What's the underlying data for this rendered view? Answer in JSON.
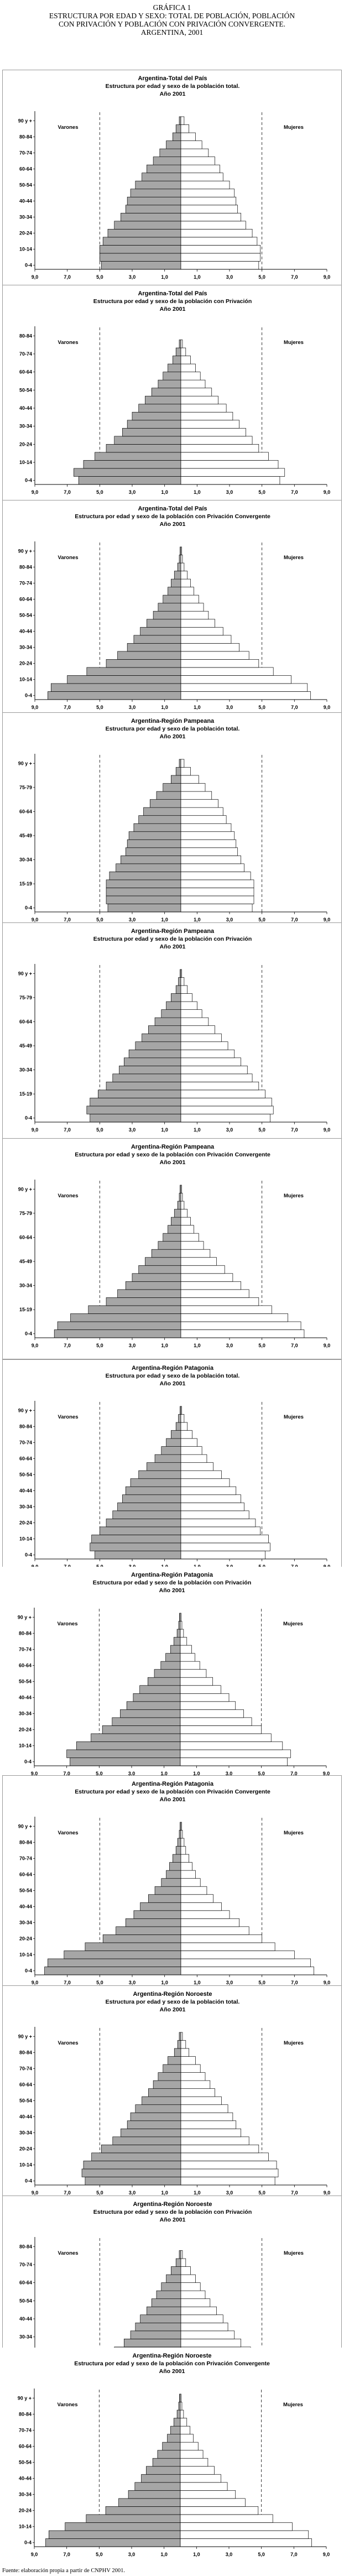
{
  "header": {
    "line1": "GRÁFICA 1",
    "line2": "ESTRUCTURA POR EDAD Y SEXO: TOTAL DE POBLACIÓN, POBLACIÓN",
    "line3": "CON PRIVACIÓN Y POBLACIÓN CON PRIVACIÓN CONVERGENTE.",
    "line4": "ARGENTINA, 2001"
  },
  "source": "Fuente: elaboración propia a partir de CNPHV 2001.",
  "colors": {
    "male": "#a6a6a6",
    "female": "#ffffff",
    "stroke": "#000000"
  },
  "chart_data": [
    {
      "type": "bar",
      "title": "Argentina-Total del País",
      "subtitle": "Estructura por edad y sexo de la población total.",
      "year": "Año 2001",
      "male_label": "Varones",
      "female_label": "Mujeres",
      "age_ticks": [
        "90 y +",
        "80-84",
        "70-74",
        "60-64",
        "50-54",
        "40-44",
        "30-34",
        "20-24",
        "10-14",
        "0-4"
      ],
      "x_ticks": [
        "9,0",
        "7,0",
        "5,0",
        "3,0",
        "1,0",
        "1,0",
        "3,0",
        "5,0",
        "7,0",
        "9,0"
      ],
      "xmax": 9,
      "males": [
        4.9,
        5.0,
        5.0,
        4.8,
        4.5,
        4.1,
        3.7,
        3.4,
        3.3,
        3.1,
        2.8,
        2.4,
        2.1,
        1.7,
        1.3,
        0.9,
        0.5,
        0.3,
        0.1
      ],
      "females": [
        4.8,
        4.9,
        4.9,
        4.7,
        4.4,
        4.0,
        3.7,
        3.5,
        3.4,
        3.3,
        3.0,
        2.6,
        2.4,
        2.1,
        1.7,
        1.3,
        0.9,
        0.5,
        0.2
      ]
    },
    {
      "type": "bar",
      "title": "Argentina-Total del País",
      "subtitle": "Estructura por edad y sexo de la población con Privación",
      "year": "Año 2001",
      "male_label": "Varones",
      "female_label": "Mujeres",
      "age_ticks": [
        "80-84",
        "70-74",
        "60-64",
        "50-54",
        "40-44",
        "30-34",
        "20-24",
        "10-14",
        "0-4"
      ],
      "x_ticks": [
        "9,0",
        "7,0",
        "5,0",
        "3,0",
        "1,0",
        "1,0",
        "3,0",
        "5,0",
        "7,0",
        "9,0"
      ],
      "xmax": 9,
      "males": [
        6.3,
        6.6,
        6.0,
        5.3,
        4.6,
        4.1,
        3.6,
        3.3,
        3.0,
        2.6,
        2.2,
        1.8,
        1.4,
        1.1,
        0.8,
        0.5,
        0.3,
        0.1
      ],
      "females": [
        6.1,
        6.4,
        6.0,
        5.4,
        4.8,
        4.4,
        4.0,
        3.6,
        3.2,
        2.8,
        2.3,
        1.9,
        1.5,
        1.2,
        0.9,
        0.6,
        0.3,
        0.1
      ]
    },
    {
      "type": "bar",
      "title": "Argentina-Total del País",
      "subtitle": "Estructura por edad y sexo de la población con Privación Convergente",
      "year": "Año 2001",
      "male_label": "Varones",
      "female_label": "Mujeres",
      "age_ticks": [
        "90 y +",
        "80-84",
        "70-74",
        "60-64",
        "50-54",
        "40-44",
        "30-34",
        "20-24",
        "10-14",
        "0-4"
      ],
      "x_ticks": [
        "9,0",
        "7,0",
        "5,0",
        "3,0",
        "1,0",
        "1,0",
        "3,0",
        "5,0",
        "7,0",
        "9,0"
      ],
      "xmax": 9,
      "males": [
        8.2,
        8.0,
        7.0,
        5.8,
        4.6,
        3.9,
        3.3,
        2.9,
        2.5,
        2.1,
        1.7,
        1.4,
        1.1,
        0.8,
        0.6,
        0.4,
        0.2,
        0.1,
        0.05
      ],
      "females": [
        8.0,
        7.8,
        6.8,
        5.7,
        4.8,
        4.2,
        3.6,
        3.1,
        2.6,
        2.1,
        1.7,
        1.4,
        1.1,
        0.8,
        0.6,
        0.4,
        0.2,
        0.1,
        0.05
      ]
    },
    {
      "type": "bar",
      "title": "Argentina-Región Pampeana",
      "subtitle": "Estructura por edad y sexo de la población total.",
      "year": "Año 2001",
      "male_label": "",
      "female_label": "",
      "age_ticks": [
        "90 y +",
        "75-79",
        "60-64",
        "45-49",
        "30-34",
        "15-19",
        "0-4"
      ],
      "x_ticks": [
        "9,0",
        "7,0",
        "5,0",
        "3,0",
        "1,0",
        "1,0",
        "3,0",
        "5,0",
        "7,0",
        "9,0"
      ],
      "xmax": 9,
      "males": [
        4.5,
        4.6,
        4.6,
        4.6,
        4.4,
        4.0,
        3.7,
        3.4,
        3.3,
        3.2,
        2.9,
        2.6,
        2.3,
        1.9,
        1.5,
        1.1,
        0.6,
        0.3,
        0.1
      ],
      "females": [
        4.4,
        4.5,
        4.5,
        4.5,
        4.3,
        3.9,
        3.7,
        3.5,
        3.4,
        3.3,
        3.1,
        2.8,
        2.6,
        2.3,
        1.9,
        1.5,
        1.1,
        0.6,
        0.2
      ]
    },
    {
      "type": "bar",
      "title": "Argentina-Región Pampeana",
      "subtitle": "Estructura por edad y sexo de la población con Privación",
      "year": "Año 2001",
      "male_label": "",
      "female_label": "",
      "age_ticks": [
        "90 y +",
        "75-79",
        "60-64",
        "45-49",
        "30-34",
        "15-19",
        "0-4"
      ],
      "x_ticks": [
        "9,0",
        "7,0",
        "5,0",
        "3,0",
        "1,0",
        "1,0",
        "3,0",
        "5,0",
        "7,0",
        "9,0"
      ],
      "xmax": 9,
      "males": [
        5.6,
        5.8,
        5.6,
        5.1,
        4.6,
        4.2,
        3.8,
        3.5,
        3.2,
        2.8,
        2.4,
        2.0,
        1.6,
        1.2,
        0.9,
        0.6,
        0.3,
        0.15,
        0.05
      ],
      "females": [
        5.5,
        5.7,
        5.6,
        5.2,
        4.8,
        4.4,
        4.1,
        3.7,
        3.3,
        2.9,
        2.5,
        2.1,
        1.7,
        1.3,
        1.0,
        0.7,
        0.4,
        0.2,
        0.05
      ]
    },
    {
      "type": "bar",
      "title": "Argentina-Región Pampeana",
      "subtitle": "Estructura por edad y sexo de la población con Privación Convergente",
      "year": "Año 2001",
      "male_label": "Varones",
      "female_label": "Mujeres",
      "age_ticks": [
        "90 y +",
        "75-79",
        "60-64",
        "45-49",
        "30-34",
        "15-19",
        "0-4"
      ],
      "x_ticks": [
        "9,0",
        "7,0",
        "5,0",
        "3,0",
        "1,0",
        "1,0",
        "3,0",
        "5,0",
        "7,0",
        "9,0"
      ],
      "xmax": 9,
      "males": [
        7.8,
        7.6,
        6.8,
        5.7,
        4.6,
        3.9,
        3.4,
        3.0,
        2.6,
        2.2,
        1.8,
        1.4,
        1.1,
        0.8,
        0.6,
        0.4,
        0.2,
        0.1,
        0.05
      ],
      "females": [
        7.6,
        7.4,
        6.6,
        5.6,
        4.8,
        4.2,
        3.7,
        3.2,
        2.7,
        2.2,
        1.8,
        1.4,
        1.1,
        0.8,
        0.6,
        0.4,
        0.2,
        0.1,
        0.05
      ]
    },
    {
      "type": "bar",
      "title": "Argentina-Región Patagonia",
      "subtitle": "Estructura por edad y sexo de la población total.",
      "year": "Año 2001",
      "male_label": "Varones",
      "female_label": "Mujeres",
      "age_ticks": [
        "90 y +",
        "80-84",
        "70-74",
        "60-64",
        "50-54",
        "40-44",
        "30-34",
        "20-24",
        "10-14",
        "0-4"
      ],
      "x_ticks": [
        "9,0",
        "7,0",
        "5,0",
        "3,0",
        "1,0",
        "1,0",
        "3,0",
        "5,0",
        "7,0",
        "9,0"
      ],
      "xmax": 9,
      "males": [
        5.3,
        5.6,
        5.5,
        5.0,
        4.6,
        4.2,
        3.9,
        3.6,
        3.4,
        3.1,
        2.6,
        2.1,
        1.6,
        1.2,
        0.9,
        0.6,
        0.3,
        0.15,
        0.05
      ],
      "females": [
        5.2,
        5.5,
        5.4,
        4.9,
        4.6,
        4.2,
        3.9,
        3.7,
        3.4,
        3.0,
        2.5,
        2.0,
        1.6,
        1.3,
        1.0,
        0.7,
        0.4,
        0.2,
        0.05
      ]
    },
    {
      "type": "bar",
      "title": "Argentina-Región Patagonia",
      "subtitle": "Estructura por edad y sexo de la población con Privación",
      "year": "Año 2001",
      "male_label": "Varones",
      "female_label": "Mujeres",
      "age_ticks": [
        "90 y +",
        "80-84",
        "70-74",
        "60-64",
        "50-54",
        "40-44",
        "30-34",
        "20-24",
        "10-14",
        "0-4"
      ],
      "x_ticks": [
        "9,0",
        "7,0",
        "5,0",
        "3,0",
        "1,0",
        "1,0",
        "3,0",
        "5,0",
        "7,0",
        "9,0"
      ],
      "xmax": 9,
      "males": [
        6.8,
        7.0,
        6.4,
        5.5,
        4.8,
        4.2,
        3.7,
        3.3,
        2.9,
        2.5,
        2.0,
        1.6,
        1.2,
        0.9,
        0.6,
        0.4,
        0.2,
        0.1,
        0.05
      ],
      "females": [
        6.6,
        6.8,
        6.3,
        5.6,
        5.0,
        4.4,
        3.9,
        3.4,
        3.0,
        2.5,
        2.0,
        1.6,
        1.2,
        0.9,
        0.7,
        0.4,
        0.2,
        0.1,
        0.05
      ]
    },
    {
      "type": "bar",
      "title": "Argentina-Región Patagonia",
      "subtitle": "Estructura por edad y sexo de la población con Privación Convergente",
      "year": "Año 2001",
      "male_label": "Varones",
      "female_label": "Mujeres",
      "age_ticks": [
        "90 y +",
        "80-84",
        "70-74",
        "60-64",
        "50-54",
        "40-44",
        "30-34",
        "20-24",
        "10-14",
        "0-4"
      ],
      "x_ticks": [
        "9,0",
        "7,0",
        "5,0",
        "3,0",
        "1,0",
        "1,0",
        "3,0",
        "5,0",
        "7,0",
        "9,0"
      ],
      "xmax": 9,
      "males": [
        8.4,
        8.2,
        7.2,
        5.9,
        4.8,
        4.0,
        3.4,
        2.9,
        2.5,
        2.0,
        1.6,
        1.2,
        0.9,
        0.7,
        0.5,
        0.3,
        0.2,
        0.1,
        0.05
      ],
      "females": [
        8.2,
        8.0,
        7.0,
        5.8,
        5.0,
        4.2,
        3.6,
        3.0,
        2.5,
        2.0,
        1.6,
        1.2,
        0.9,
        0.7,
        0.5,
        0.3,
        0.2,
        0.1,
        0.05
      ]
    },
    {
      "type": "bar",
      "title": "Argentina-Región Noroeste",
      "subtitle": "Estructura por edad y sexo de la población total.",
      "year": "Año 2001",
      "male_label": "Varones",
      "female_label": "Mujeres",
      "age_ticks": [
        "90 y +",
        "80-84",
        "70-74",
        "60-64",
        "50-54",
        "40-44",
        "30-34",
        "20-24",
        "10-14",
        "0-4"
      ],
      "x_ticks": [
        "9,0",
        "7,0",
        "5,0",
        "3,0",
        "1,0",
        "1,0",
        "3,0",
        "5,0",
        "7,0",
        "9,0"
      ],
      "xmax": 9,
      "males": [
        5.9,
        6.1,
        6.0,
        5.5,
        4.9,
        4.2,
        3.7,
        3.3,
        3.1,
        2.8,
        2.4,
        2.0,
        1.7,
        1.4,
        1.1,
        0.8,
        0.4,
        0.2,
        0.1
      ],
      "females": [
        5.8,
        6.0,
        5.9,
        5.4,
        4.8,
        4.2,
        3.7,
        3.4,
        3.2,
        2.9,
        2.5,
        2.1,
        1.8,
        1.5,
        1.2,
        0.9,
        0.5,
        0.3,
        0.1
      ]
    },
    {
      "type": "bar",
      "title": "Argentina-Región Noroeste",
      "subtitle": "Estructura por edad y sexo de la población con Privación",
      "year": "Año 2001",
      "male_label": "Varones",
      "female_label": "Mujeres",
      "age_ticks": [
        "80-84",
        "70-74",
        "60-64",
        "50-54",
        "40-44",
        "30-34",
        "20-24",
        "10-14",
        "0-4"
      ],
      "x_ticks": [
        "9,0",
        "7,0",
        "5,0",
        "3,0",
        "1,0",
        "1,0",
        "3,0",
        "5,0",
        "7,0",
        "9,0"
      ],
      "xmax": 9,
      "males": [
        6.8,
        7.1,
        6.6,
        5.8,
        4.9,
        4.1,
        3.5,
        3.1,
        2.8,
        2.5,
        2.1,
        1.8,
        1.5,
        1.2,
        0.9,
        0.6,
        0.3,
        0.1
      ],
      "females": [
        6.6,
        6.9,
        6.5,
        5.8,
        5.0,
        4.3,
        3.7,
        3.3,
        2.9,
        2.6,
        2.2,
        1.8,
        1.5,
        1.2,
        0.9,
        0.6,
        0.3,
        0.1
      ]
    },
    {
      "type": "bar",
      "title": "Argentina-Región Noroeste",
      "subtitle": "Estructura por edad y sexo de la población con Privación Convergente",
      "year": "Año 2001",
      "male_label": "Varones",
      "female_label": "Mujeres",
      "age_ticks": [
        "90 y +",
        "80-84",
        "70-74",
        "60-64",
        "50-54",
        "40-44",
        "30-34",
        "20-24",
        "10-14",
        "0-4"
      ],
      "x_ticks": [
        "9,0",
        "7,0",
        "5,0",
        "3,0",
        "1,0",
        "1,0",
        "3,0",
        "5,0",
        "7,0",
        "9,0"
      ],
      "xmax": 9,
      "males": [
        8.3,
        8.1,
        7.1,
        5.8,
        4.6,
        3.8,
        3.2,
        2.8,
        2.4,
        2.1,
        1.7,
        1.4,
        1.1,
        0.8,
        0.6,
        0.4,
        0.2,
        0.1,
        0.05
      ],
      "females": [
        8.1,
        7.9,
        6.9,
        5.7,
        4.8,
        4.0,
        3.4,
        2.9,
        2.5,
        2.1,
        1.7,
        1.4,
        1.1,
        0.8,
        0.6,
        0.4,
        0.2,
        0.1,
        0.05
      ]
    }
  ]
}
